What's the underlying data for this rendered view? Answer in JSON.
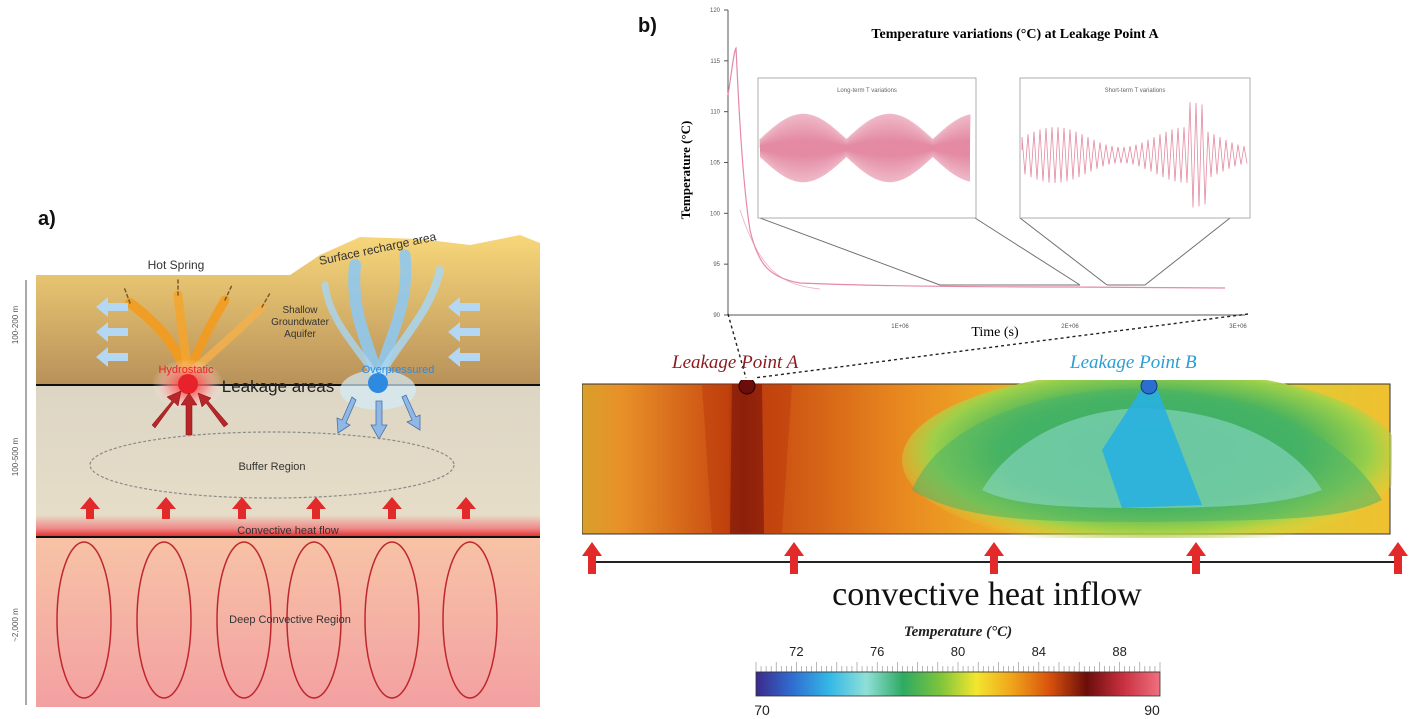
{
  "panel_a": {
    "label": "a)",
    "hot_spring": "Hot Spring",
    "surface_recharge": "Surface recharge area",
    "shallow_aquifer": [
      "Shallow",
      "Groundwater",
      "Aquifer"
    ],
    "hydrostatic": "Hydrostatic",
    "overpressured": "Overpressured",
    "leakage_areas": "Leakage areas",
    "buffer_region": "Buffer Region",
    "convective_heat_flow": "Convective heat flow",
    "deep_convective_region": "Deep Convective Region",
    "depth_labels": [
      "100-200 m",
      "100-500 m",
      "~2,000 m"
    ]
  },
  "panel_b": {
    "label": "b)",
    "leakage_a": "Leakage Point A",
    "leakage_b": "Leakage Point B",
    "convective_inflow": "convective heat inflow"
  },
  "chart_data": {
    "type": "line",
    "title": "Temperature variations (°C) at Leakage Point A",
    "xlabel": "Time (s)",
    "ylabel": "Temperature (°C)",
    "y_ticks": [
      "90",
      "95",
      "100",
      "105",
      "110",
      "115",
      "120"
    ],
    "x_ticks": [
      "1E+06",
      "2E+06",
      "3E+06"
    ],
    "inset_long_title": "Long-term T variations",
    "inset_short_title": "Short-term T variations",
    "colors": {
      "line": "#e48aa3",
      "zoom": "#707070"
    }
  },
  "colorbar": {
    "title": "Temperature (°C)",
    "top_ticks": [
      "72",
      "76",
      "80",
      "84",
      "88"
    ],
    "min": "70",
    "max": "90",
    "colors": [
      "#3b2a8c",
      "#2f6fd1",
      "#35b8e6",
      "#8fe0d8",
      "#2eaa62",
      "#7cc43c",
      "#f3e62f",
      "#f0a21a",
      "#d8520c",
      "#6b0d0a",
      "#c83040",
      "#f07080"
    ]
  }
}
